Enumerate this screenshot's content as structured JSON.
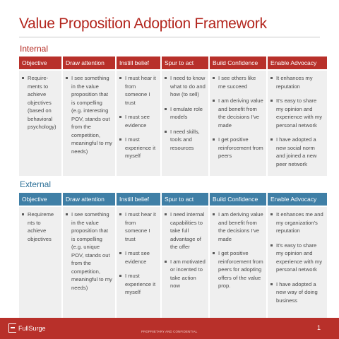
{
  "title": "Value Proposition Adoption Framework",
  "headers": [
    "Objective",
    "Draw attention",
    "Instill belief",
    "Spur to act",
    "Build Confidence",
    "Enable Advocacy"
  ],
  "colors": {
    "title": "#b3261e",
    "internal_header": "#b8302a",
    "external_header": "#3f7fa6",
    "cell_bg": "#efefef",
    "footer": "#b8302a"
  },
  "internal": {
    "label": "Internal",
    "columns": [
      [
        "Require-ments to achieve objectives (based on behavioral psychology)"
      ],
      [
        "I see something in the value proposition that is compelling (e.g. interesting POV, stands out from the competition, meaningful to my needs)"
      ],
      [
        "I must hear it from someone I trust",
        "I must see evidence",
        "I must experience it myself"
      ],
      [
        "I need to know what to do and how (to sell)",
        "I emulate role models",
        "I need skills, tools and resources"
      ],
      [
        "I see others like me succeed",
        "I am deriving value and benefit from the decisions I've made",
        "I get positive reinforcement from peers"
      ],
      [
        "It enhances my reputation",
        "It's easy to share my opinion and experience with my personal network",
        "I have adopted a new social norm and joined a new peer network"
      ]
    ]
  },
  "external": {
    "label": "External",
    "columns": [
      [
        "Requireme nts to achieve objectives"
      ],
      [
        "I see something in the value proposition that is compelling (e.g. unique POV, stands out from the competition, meaningful to my needs)"
      ],
      [
        "I must hear it from someone I trust",
        "I must see evidence",
        "I must experience it myself"
      ],
      [
        "I need internal capabilities to take full advantage of the offer",
        "I am motivated or incented to take action now"
      ],
      [
        "I am deriving value and benefit from the decisions I've made",
        "I get positive reinforcement from peers for adopting offers of the value prop."
      ],
      [
        "It enhances me and my organization's reputation",
        "It's easy to share my opinion and experience with my personal network",
        "I have adopted a new way of doing business"
      ]
    ]
  },
  "footer": {
    "logo_text": "FullSurge",
    "confidential": "PROPRIETARY AND CONFIDENTIAL",
    "page_number": "1"
  }
}
